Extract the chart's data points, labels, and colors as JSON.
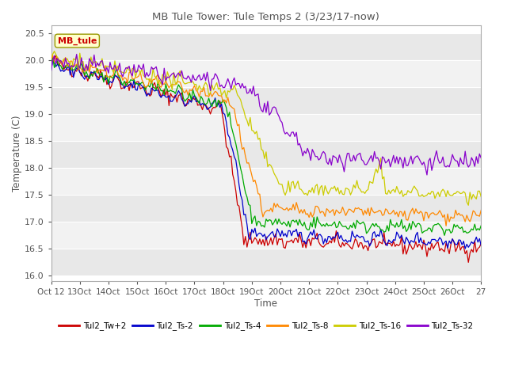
{
  "title": "MB Tule Tower: Tule Temps 2 (3/23/17-now)",
  "xlabel": "Time",
  "ylabel": "Temperature (C)",
  "ylim": [
    15.9,
    20.65
  ],
  "xlim": [
    0,
    270
  ],
  "xtick_labels": [
    "Oct 12",
    "13Oct",
    "14Oct",
    "15Oct",
    "16Oct",
    "17Oct",
    "18Oct",
    "19Oct",
    "20Oct",
    "21Oct",
    "22Oct",
    "23Oct",
    "24Oct",
    "25Oct",
    "26Oct",
    "27"
  ],
  "xtick_positions": [
    0,
    18,
    36,
    54,
    72,
    90,
    108,
    126,
    144,
    162,
    180,
    198,
    216,
    234,
    252,
    270
  ],
  "ytick_labels": [
    "16.0",
    "16.5",
    "17.0",
    "17.5",
    "18.0",
    "18.5",
    "19.0",
    "19.5",
    "20.0",
    "20.5"
  ],
  "ytick_values": [
    16.0,
    16.5,
    17.0,
    17.5,
    18.0,
    18.5,
    19.0,
    19.5,
    20.0,
    20.5
  ],
  "series": [
    {
      "label": "Tul2_Tw+2",
      "color": "#cc0000"
    },
    {
      "label": "Tul2_Ts-2",
      "color": "#0000cc"
    },
    {
      "label": "Tul2_Ts-4",
      "color": "#00aa00"
    },
    {
      "label": "Tul2_Ts-8",
      "color": "#ff8800"
    },
    {
      "label": "Tul2_Ts-16",
      "color": "#cccc00"
    },
    {
      "label": "Tul2_Ts-32",
      "color": "#8800cc"
    }
  ],
  "legend_label": "MB_tule",
  "legend_color": "#cc0000",
  "background_color": "#ffffff",
  "plot_bg_even": "#e8e8e8",
  "plot_bg_odd": "#f2f2f2",
  "grid_color": "#ffffff"
}
